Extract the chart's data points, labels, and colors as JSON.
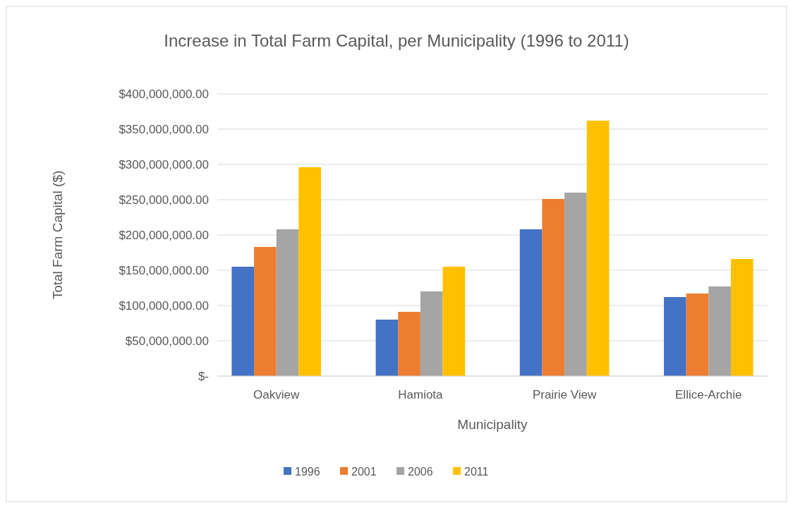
{
  "chart_data": {
    "type": "bar",
    "title": "Increase in Total Farm Capital, per Municipality (1996 to 2011)",
    "xlabel": "Municipality",
    "ylabel": "Total Farm Capital ($)",
    "categories": [
      "Oakview",
      "Hamiota",
      "Prairie View",
      "Ellice-Archie"
    ],
    "series": [
      {
        "name": "1996",
        "color": "#4472c4",
        "values": [
          155000000,
          80000000,
          208000000,
          112000000
        ]
      },
      {
        "name": "2001",
        "color": "#ed7d31",
        "values": [
          183000000,
          91000000,
          251000000,
          117000000
        ]
      },
      {
        "name": "2006",
        "color": "#a5a5a5",
        "values": [
          208000000,
          120000000,
          260000000,
          127000000
        ]
      },
      {
        "name": "2011",
        "color": "#ffc000",
        "values": [
          296000000,
          155000000,
          362000000,
          166000000
        ]
      }
    ],
    "ylim": [
      0,
      400000000
    ],
    "yticks": [
      {
        "value": 0,
        "label": "$-"
      },
      {
        "value": 50000000,
        "label": "$50,000,000.00"
      },
      {
        "value": 100000000,
        "label": "$100,000,000.00"
      },
      {
        "value": 150000000,
        "label": "$150,000,000.00"
      },
      {
        "value": 200000000,
        "label": "$200,000,000.00"
      },
      {
        "value": 250000000,
        "label": "$250,000,000.00"
      },
      {
        "value": 300000000,
        "label": "$300,000,000.00"
      },
      {
        "value": 350000000,
        "label": "$350,000,000.00"
      },
      {
        "value": 400000000,
        "label": "$400,000,000.00"
      }
    ],
    "grid": "y",
    "legend": "bottom"
  }
}
